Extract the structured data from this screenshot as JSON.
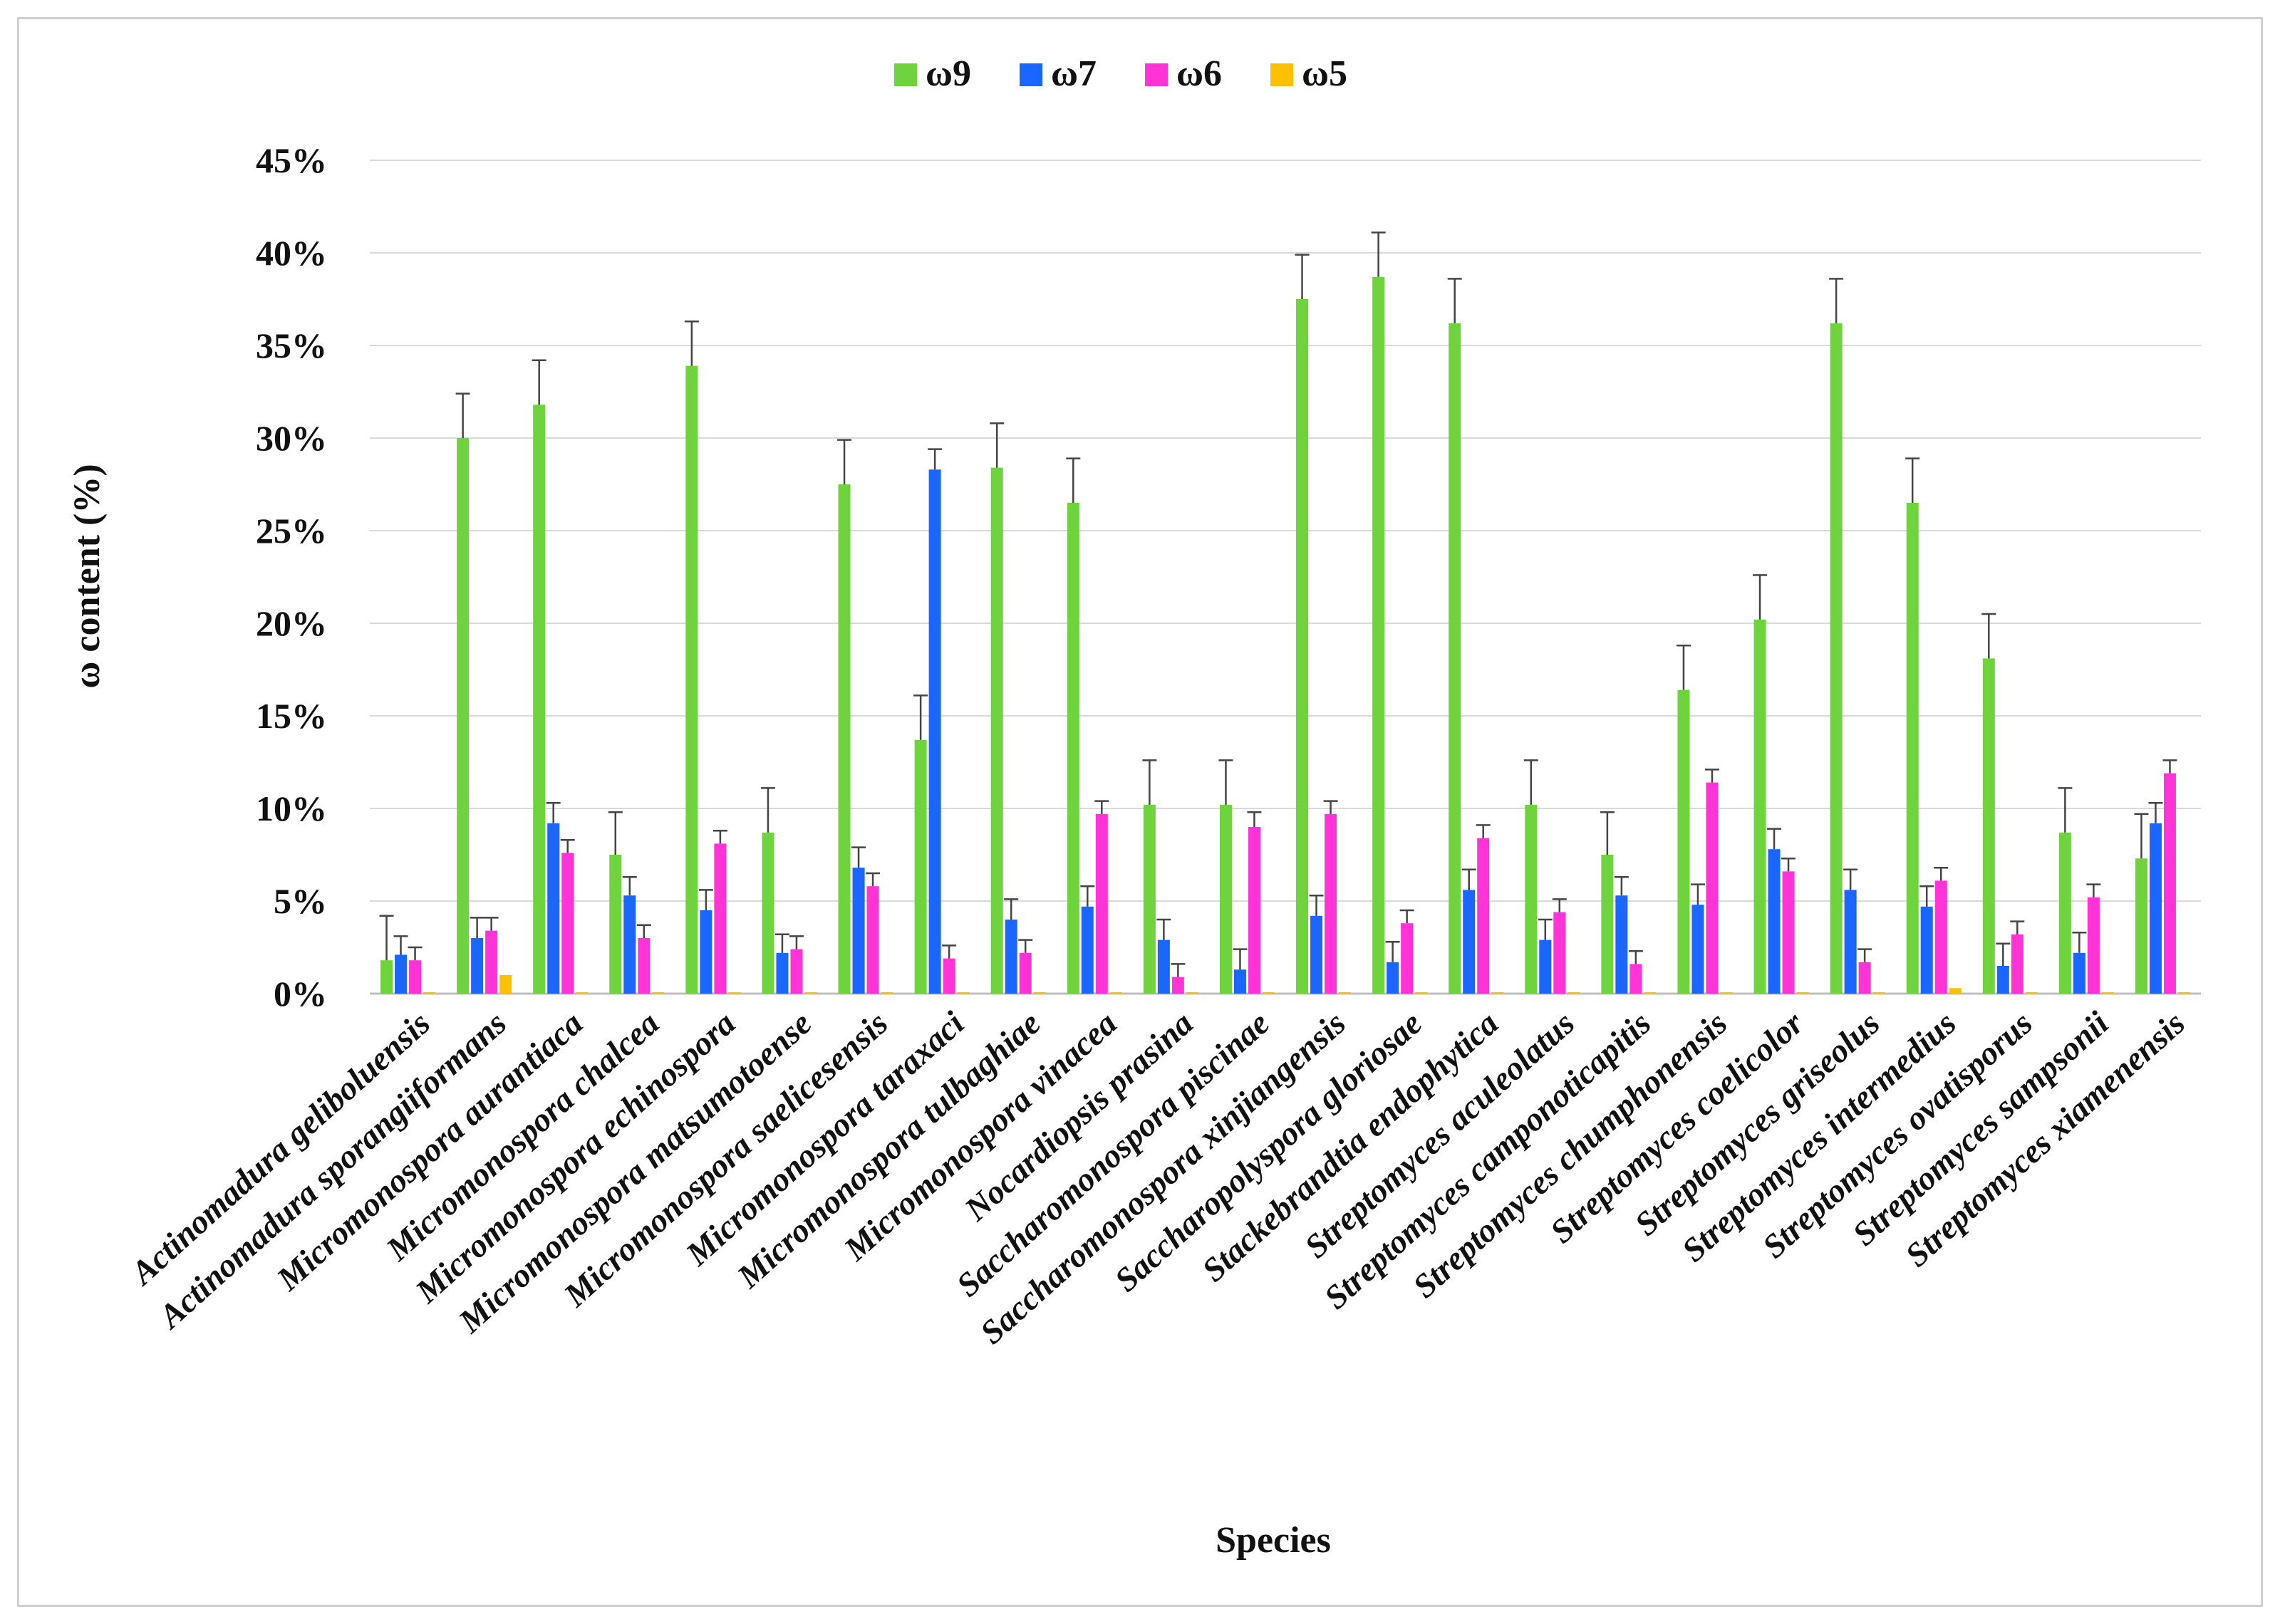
{
  "chart_data": {
    "type": "bar",
    "ylabel": "ω content (%)",
    "xlabel": "Species",
    "ylim": [
      0,
      45
    ],
    "y_ticks": [
      "0%",
      "5%",
      "10%",
      "15%",
      "20%",
      "25%",
      "30%",
      "35%",
      "40%",
      "45%"
    ],
    "grid": true,
    "legend_position": "top-center",
    "categories": [
      "Actinomadura geliboluensis",
      "Actinomadura sporangiiformans",
      "Micromonospora aurantiaca",
      "Micromonospora chalcea",
      "Micromonospora echinospora",
      "Micromonospora matsumotoense",
      "Micromonospora saelicesensis",
      "Micromonospora taraxaci",
      "Micromonospora tulbaghiae",
      "Micromonospora vinacea",
      "Nocardiopsis prasina",
      "Saccharomonospora piscinae",
      "Saccharomonospora xinjiangensis",
      "Saccharopolyspora gloriosae",
      "Stackebrandtia endophytica",
      "Streptomyces aculeolatus",
      "Streptomyces camponoticapitis",
      "Streptomyces chumphonensis",
      "Streptomyces coelicolor",
      "Streptomyces griseolus",
      "Streptomyces intermedius",
      "Streptomyces ovatisporus",
      "Streptomyces sampsonii",
      "Streptomyces xiamenensis"
    ],
    "series": [
      {
        "name": "ω9",
        "color": "#6ed33c",
        "values": [
          1.8,
          30.0,
          31.8,
          7.5,
          33.9,
          8.7,
          27.5,
          13.7,
          28.4,
          26.5,
          10.2,
          10.2,
          37.5,
          38.7,
          36.2,
          10.2,
          7.5,
          16.4,
          20.2,
          36.2,
          26.5,
          18.1,
          8.7,
          7.3
        ],
        "errors": [
          2.4,
          2.4,
          2.4,
          2.3,
          2.4,
          2.4,
          2.4,
          2.4,
          2.4,
          2.4,
          2.4,
          2.4,
          2.4,
          2.4,
          2.4,
          2.4,
          2.3,
          2.4,
          2.4,
          2.4,
          2.4,
          2.4,
          2.4,
          2.4
        ]
      },
      {
        "name": "ω7",
        "color": "#1a66ff",
        "values": [
          2.1,
          3.0,
          9.2,
          5.3,
          4.5,
          2.2,
          6.8,
          28.3,
          4.0,
          4.7,
          2.9,
          1.3,
          4.2,
          1.7,
          5.6,
          2.9,
          5.3,
          4.8,
          7.8,
          5.6,
          4.7,
          1.5,
          2.2,
          9.2
        ],
        "errors": [
          1.0,
          1.1,
          1.1,
          1.0,
          1.1,
          1.0,
          1.1,
          1.1,
          1.1,
          1.1,
          1.1,
          1.1,
          1.1,
          1.1,
          1.1,
          1.1,
          1.0,
          1.1,
          1.1,
          1.1,
          1.1,
          1.2,
          1.1,
          1.1
        ]
      },
      {
        "name": "ω6",
        "color": "#ff33d6",
        "values": [
          1.8,
          3.4,
          7.6,
          3.0,
          8.1,
          2.4,
          5.8,
          1.9,
          2.2,
          9.7,
          0.9,
          9.0,
          9.7,
          3.8,
          8.4,
          4.4,
          1.6,
          11.4,
          6.6,
          1.7,
          6.1,
          3.2,
          5.2,
          11.9
        ],
        "errors": [
          0.7,
          0.7,
          0.7,
          0.7,
          0.7,
          0.7,
          0.7,
          0.7,
          0.7,
          0.7,
          0.7,
          0.8,
          0.7,
          0.7,
          0.7,
          0.7,
          0.7,
          0.7,
          0.7,
          0.7,
          0.7,
          0.7,
          0.7,
          0.7
        ]
      },
      {
        "name": "ω5",
        "color": "#ffc000",
        "values": [
          0,
          1.0,
          0,
          0,
          0,
          0,
          0,
          0,
          0,
          0,
          0,
          0,
          0,
          0,
          0,
          0,
          0,
          0,
          0,
          0,
          0.3,
          0,
          0,
          0
        ],
        "errors": [
          0,
          0,
          0,
          0,
          0,
          0,
          0,
          0,
          0,
          0,
          0,
          0,
          0,
          0,
          0,
          0,
          0,
          0,
          0,
          0,
          0,
          0,
          0,
          0
        ]
      }
    ]
  }
}
